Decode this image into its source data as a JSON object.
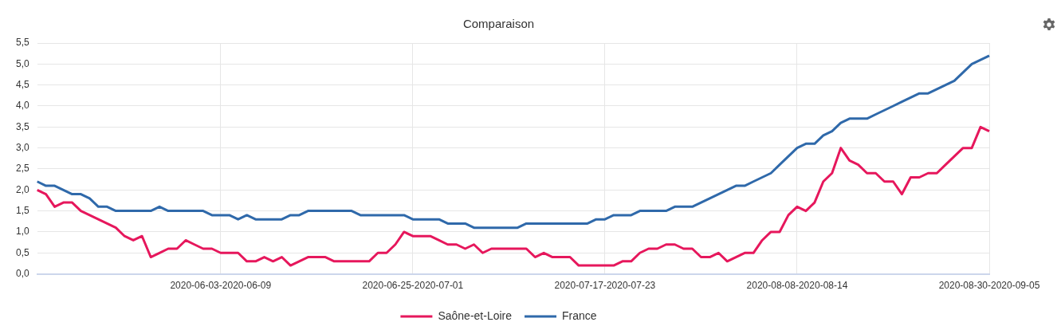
{
  "chart_data": {
    "type": "line",
    "title": "Comparaison",
    "categories": [
      null,
      null,
      null,
      null,
      null,
      null,
      null,
      null,
      null,
      null,
      null,
      null,
      null,
      null,
      null,
      null,
      null,
      null,
      null,
      null,
      null,
      "2020-06-03-2020-06-09",
      null,
      null,
      null,
      null,
      null,
      null,
      null,
      null,
      null,
      null,
      null,
      null,
      null,
      null,
      null,
      null,
      null,
      null,
      null,
      null,
      null,
      "2020-06-25-2020-07-01",
      null,
      null,
      null,
      null,
      null,
      null,
      null,
      null,
      null,
      null,
      null,
      null,
      null,
      null,
      null,
      null,
      null,
      null,
      null,
      null,
      null,
      "2020-07-17-2020-07-23",
      null,
      null,
      null,
      null,
      null,
      null,
      null,
      null,
      null,
      null,
      null,
      null,
      null,
      null,
      null,
      null,
      null,
      null,
      null,
      null,
      null,
      "2020-08-08-2020-08-14",
      null,
      null,
      null,
      null,
      null,
      null,
      null,
      null,
      null,
      null,
      null,
      null,
      null,
      null,
      null,
      null,
      null,
      null,
      null,
      null,
      null,
      "2020-08-30-2020-09-05"
    ],
    "series": [
      {
        "name": "Saône-et-Loire",
        "color": "#e6175c",
        "values": [
          2.0,
          1.9,
          1.6,
          1.7,
          1.7,
          1.5,
          1.4,
          1.3,
          1.2,
          1.1,
          0.9,
          0.8,
          0.9,
          0.4,
          0.5,
          0.6,
          0.6,
          0.8,
          0.7,
          0.6,
          0.6,
          0.5,
          0.5,
          0.5,
          0.3,
          0.3,
          0.4,
          0.3,
          0.4,
          0.2,
          0.3,
          0.4,
          0.4,
          0.4,
          0.3,
          0.3,
          0.3,
          0.3,
          0.3,
          0.5,
          0.5,
          0.7,
          1.0,
          0.9,
          0.9,
          0.9,
          0.8,
          0.7,
          0.7,
          0.6,
          0.7,
          0.5,
          0.6,
          0.6,
          0.6,
          0.6,
          0.6,
          0.4,
          0.5,
          0.4,
          0.4,
          0.4,
          0.2,
          0.2,
          0.2,
          0.2,
          0.2,
          0.3,
          0.3,
          0.5,
          0.6,
          0.6,
          0.7,
          0.7,
          0.6,
          0.6,
          0.4,
          0.4,
          0.5,
          0.3,
          0.4,
          0.5,
          0.5,
          0.8,
          1.0,
          1.0,
          1.4,
          1.6,
          1.5,
          1.7,
          2.2,
          2.4,
          3.0,
          2.7,
          2.6,
          2.4,
          2.4,
          2.2,
          2.2,
          1.9,
          2.3,
          2.3,
          2.4,
          2.4,
          2.6,
          2.8,
          3.0,
          3.0,
          3.5,
          3.4
        ]
      },
      {
        "name": "France",
        "color": "#2f69aa",
        "values": [
          2.2,
          2.1,
          2.1,
          2.0,
          1.9,
          1.9,
          1.8,
          1.6,
          1.6,
          1.5,
          1.5,
          1.5,
          1.5,
          1.5,
          1.6,
          1.5,
          1.5,
          1.5,
          1.5,
          1.5,
          1.4,
          1.4,
          1.4,
          1.3,
          1.4,
          1.3,
          1.3,
          1.3,
          1.3,
          1.4,
          1.4,
          1.5,
          1.5,
          1.5,
          1.5,
          1.5,
          1.5,
          1.4,
          1.4,
          1.4,
          1.4,
          1.4,
          1.4,
          1.3,
          1.3,
          1.3,
          1.3,
          1.2,
          1.2,
          1.2,
          1.1,
          1.1,
          1.1,
          1.1,
          1.1,
          1.1,
          1.2,
          1.2,
          1.2,
          1.2,
          1.2,
          1.2,
          1.2,
          1.2,
          1.3,
          1.3,
          1.4,
          1.4,
          1.4,
          1.5,
          1.5,
          1.5,
          1.5,
          1.6,
          1.6,
          1.6,
          1.7,
          1.8,
          1.9,
          2.0,
          2.1,
          2.1,
          2.2,
          2.3,
          2.4,
          2.6,
          2.8,
          3.0,
          3.1,
          3.1,
          3.3,
          3.4,
          3.6,
          3.7,
          3.7,
          3.7,
          3.8,
          3.9,
          4.0,
          4.1,
          4.2,
          4.3,
          4.3,
          4.4,
          4.5,
          4.6,
          4.8,
          5.0,
          5.1,
          5.2
        ]
      }
    ],
    "ylim": [
      0,
      5.5
    ],
    "yticks": [
      {
        "value": 0,
        "label": "0,0"
      },
      {
        "value": 0.5,
        "label": "0,5"
      },
      {
        "value": 1,
        "label": "1,0"
      },
      {
        "value": 1.5,
        "label": "1,5"
      },
      {
        "value": 2,
        "label": "2,0"
      },
      {
        "value": 2.5,
        "label": "2,5"
      },
      {
        "value": 3,
        "label": "3,0"
      },
      {
        "value": 3.5,
        "label": "3,5"
      },
      {
        "value": 4,
        "label": "4,0"
      },
      {
        "value": 4.5,
        "label": "4,5"
      },
      {
        "value": 5,
        "label": "5,0"
      },
      {
        "value": 5.5,
        "label": "5,5"
      }
    ],
    "grid": true,
    "legend": "bottom",
    "marker": "none",
    "line_style": "solid"
  }
}
